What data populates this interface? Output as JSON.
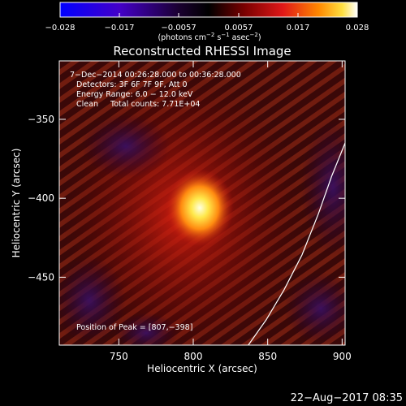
{
  "colorbar": {
    "ticks": [
      "−0.028",
      "−0.017",
      "−0.0057",
      "0.0057",
      "0.017",
      "0.028"
    ],
    "units_prefix": "(photons cm",
    "units_exp1": "−2",
    "units_mid": " s",
    "units_exp2": "−1",
    "units_mid2": " asec",
    "units_exp3": "−2",
    "units_suffix": ")"
  },
  "title": "Reconstructed RHESSI Image",
  "annotations": {
    "time_range": "7−Dec−2014 00:26:28.000 to 00:36:28.000",
    "detectors": "Detectors: 3F 6F 7F 9F, Att 0",
    "energy": "Energy Range: 6.0 − 12.0 keV",
    "clean": "Clean     Total counts: 7.71E+04",
    "peak": "Position of Peak = [807,−398]"
  },
  "colors": {
    "background": "#000000",
    "limb_line": "#ffffff",
    "colormap": [
      "#0000ff",
      "#5a00c0",
      "#2a0050",
      "#000000",
      "#6a0000",
      "#d01010",
      "#ff6a00",
      "#ffd000",
      "#ffffff"
    ]
  },
  "chart_data": {
    "type": "heatmap",
    "title": "Reconstructed RHESSI Image",
    "xlabel": "Heliocentric X (arcsec)",
    "ylabel": "Heliocentric Y (arcsec)",
    "xlim": [
      710,
      902
    ],
    "ylim": [
      -493,
      -313
    ],
    "x_ticks": [
      750,
      800,
      850,
      900
    ],
    "y_ticks": [
      -350,
      -400,
      -450
    ],
    "x_tick_labels": [
      "750",
      "800",
      "850",
      "900"
    ],
    "y_tick_labels": [
      "−350",
      "−400",
      "−450"
    ],
    "colorbar_range": [
      -0.028,
      0.028
    ],
    "peak_position": [
      807,
      -398
    ],
    "solar_limb": [
      [
        837,
        -493
      ],
      [
        849,
        -477
      ],
      [
        861,
        -458
      ],
      [
        873,
        -436
      ],
      [
        884,
        -410
      ],
      [
        893,
        -386
      ],
      [
        902,
        -365
      ]
    ]
  },
  "footer": {
    "timestamp": "22−Aug−2017 08:35"
  }
}
